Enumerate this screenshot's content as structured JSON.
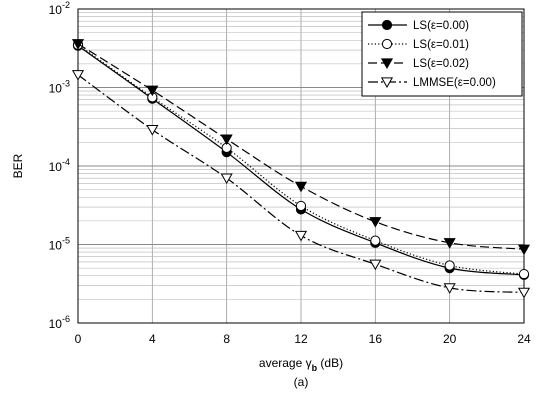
{
  "chart_data": {
    "type": "line",
    "x": [
      0,
      4,
      8,
      12,
      16,
      20,
      24
    ],
    "xlim": [
      0,
      24
    ],
    "ylim": [
      1e-06,
      0.01
    ],
    "yscale": "log",
    "xticks": [
      "0",
      "4",
      "8",
      "12",
      "16",
      "20",
      "24"
    ],
    "yticks": [
      {
        "base": "10",
        "exp": "-6"
      },
      {
        "base": "10",
        "exp": "-5"
      },
      {
        "base": "10",
        "exp": "-4"
      },
      {
        "base": "10",
        "exp": "-3"
      },
      {
        "base": "10",
        "exp": "-2"
      }
    ],
    "ylabel": "BER",
    "xlabel": {
      "prefix": "average ",
      "symbol": "γ",
      "subscript": "b",
      "suffix": " (dB)"
    },
    "caption": "(a)",
    "grid": true,
    "legend_position": "top-right",
    "series": [
      {
        "name": "LS(ε=0.00)",
        "values": [
          0.0034,
          0.00072,
          0.00015,
          2.8e-05,
          1.05e-05,
          5e-06,
          4.1e-06
        ],
        "marker": "circle-filled",
        "dash": "solid"
      },
      {
        "name": "LS(ε=0.01)",
        "values": [
          0.0035,
          0.00075,
          0.00017,
          3.1e-05,
          1.12e-05,
          5.4e-06,
          4.2e-06
        ],
        "marker": "circle-open",
        "dash": "dotted"
      },
      {
        "name": "LS(ε=0.02)",
        "values": [
          0.0036,
          0.00092,
          0.00022,
          5.5e-05,
          1.95e-05,
          1.05e-05,
          8.7e-06
        ],
        "marker": "triangle-down-filled",
        "dash": "dashed"
      },
      {
        "name": "LMMSE(ε=0.00)",
        "values": [
          0.00145,
          0.00029,
          7e-05,
          1.3e-05,
          5.6e-06,
          2.8e-06,
          2.45e-06
        ],
        "marker": "triangle-down-open",
        "dash": "dashdot"
      }
    ]
  }
}
